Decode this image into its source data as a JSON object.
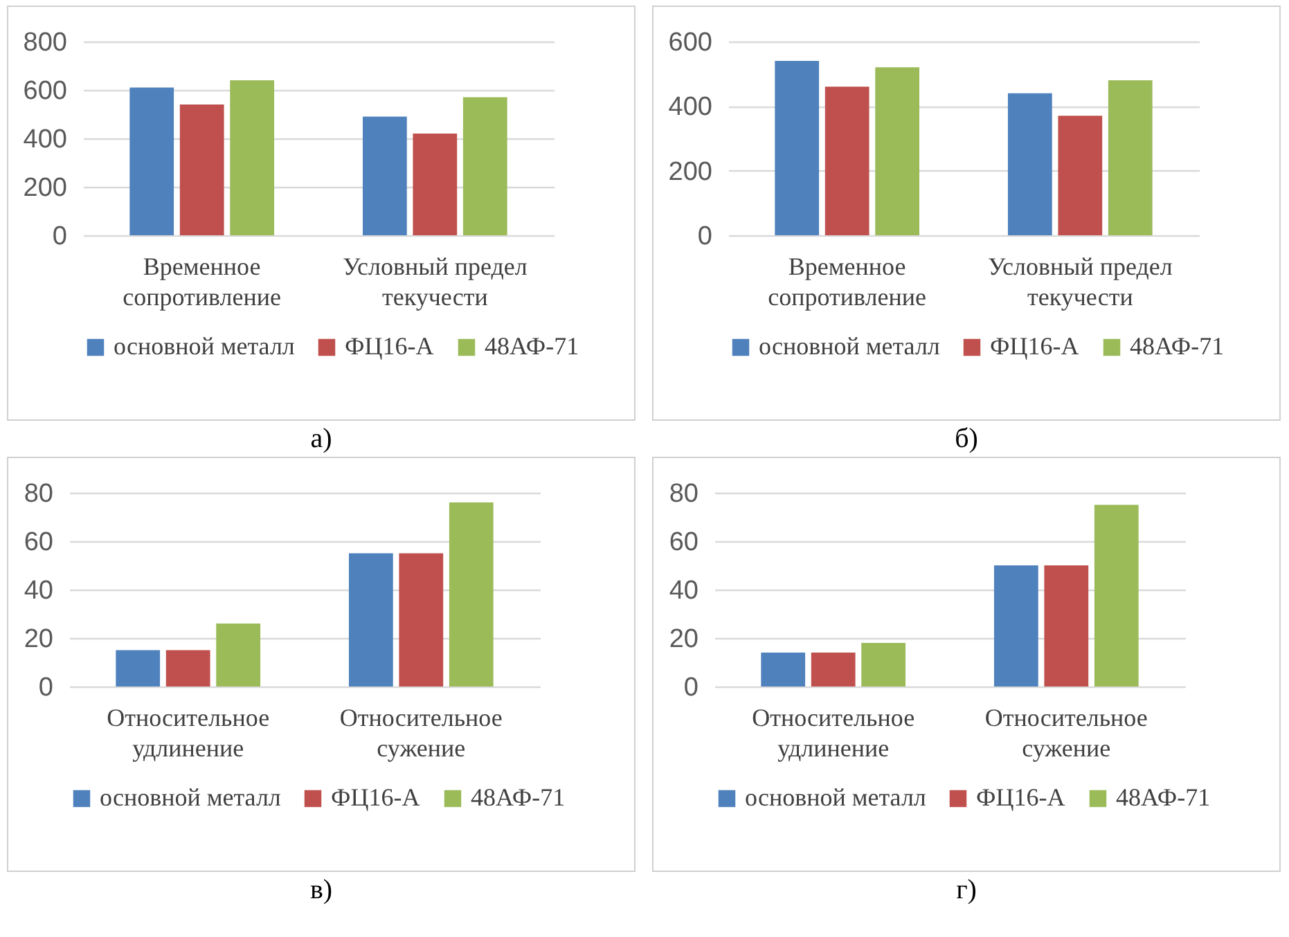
{
  "chart_data": [
    {
      "type": "bar",
      "categories": [
        "Временное сопротивление",
        "Условный предел текучести"
      ],
      "series": [
        {
          "name": "основной металл",
          "color": "#4f81bd",
          "values": [
            610,
            490
          ]
        },
        {
          "name": "ФЦ16-А",
          "color": "#c0504d",
          "values": [
            540,
            420
          ]
        },
        {
          "name": "48АФ-71",
          "color": "#9bbb59",
          "values": [
            640,
            570
          ]
        }
      ],
      "ylim": [
        0,
        800
      ],
      "yticks": [
        0,
        200,
        400,
        600,
        800
      ],
      "grid": "y",
      "legend": "bottom",
      "annotations": [
        "а)"
      ]
    },
    {
      "type": "bar",
      "categories": [
        "Временное сопротивление",
        "Условный предел текучести"
      ],
      "series": [
        {
          "name": "основной металл",
          "color": "#4f81bd",
          "values": [
            540,
            440
          ]
        },
        {
          "name": "ФЦ16-А",
          "color": "#c0504d",
          "values": [
            460,
            370
          ]
        },
        {
          "name": "48АФ-71",
          "color": "#9bbb59",
          "values": [
            520,
            480
          ]
        }
      ],
      "ylim": [
        0,
        600
      ],
      "yticks": [
        0,
        200,
        400,
        600
      ],
      "grid": "y",
      "legend": "bottom",
      "annotations": [
        "б)"
      ]
    },
    {
      "type": "bar",
      "categories": [
        "Относительное удлинение",
        "Относительное сужение"
      ],
      "series": [
        {
          "name": "основной металл",
          "color": "#4f81bd",
          "values": [
            15,
            55
          ]
        },
        {
          "name": "ФЦ16-А",
          "color": "#c0504d",
          "values": [
            15,
            55
          ]
        },
        {
          "name": "48АФ-71",
          "color": "#9bbb59",
          "values": [
            26,
            76
          ]
        }
      ],
      "ylim": [
        0,
        80
      ],
      "yticks": [
        0,
        20,
        40,
        60,
        80
      ],
      "grid": "y",
      "legend": "bottom",
      "annotations": [
        "в)"
      ]
    },
    {
      "type": "bar",
      "categories": [
        "Относительное удлинение",
        "Относительное сужение"
      ],
      "series": [
        {
          "name": "основной металл",
          "color": "#4f81bd",
          "values": [
            14,
            50
          ]
        },
        {
          "name": "ФЦ16-А",
          "color": "#c0504d",
          "values": [
            14,
            50
          ]
        },
        {
          "name": "48АФ-71",
          "color": "#9bbb59",
          "values": [
            18,
            75
          ]
        }
      ],
      "ylim": [
        0,
        80
      ],
      "yticks": [
        0,
        20,
        40,
        60,
        80
      ],
      "grid": "y",
      "legend": "bottom",
      "annotations": [
        "г)"
      ]
    }
  ]
}
